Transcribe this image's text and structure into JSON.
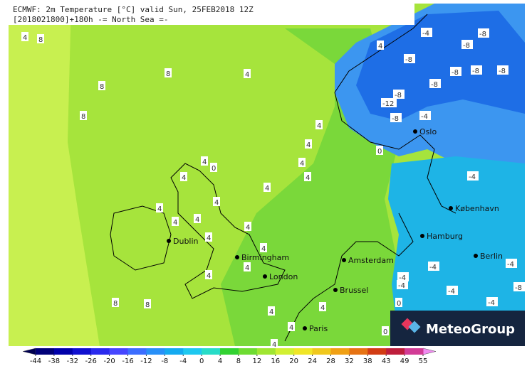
{
  "header": {
    "line1": "ECMWF: 2m Temperature [°C] valid Sun, 25FEB2018 12Z",
    "line2": "[2018021800]+180h  -= North Sea =-"
  },
  "cities": [
    "Oslo",
    "København",
    "Hamburg",
    "Berlin",
    "Amsterdam",
    "Dublin",
    "Birmingham",
    "London",
    "Brussel",
    "Paris"
  ],
  "contour_labels": [
    "4",
    "8",
    "8",
    "8",
    "8",
    "8",
    "8",
    "4",
    "4",
    "4",
    "4",
    "4",
    "4",
    "0",
    "4",
    "4",
    "4",
    "4",
    "4",
    "4",
    "4",
    "4",
    "4",
    "4",
    "4",
    "4",
    "4",
    "4",
    "4",
    "4",
    "0",
    "0",
    "-4",
    "-4",
    "-4",
    "-8",
    "-8",
    "-8",
    "-8",
    "-8",
    "-8",
    "-8",
    "-12",
    "-8",
    "-8",
    "-4",
    "-4",
    "-4",
    "-4",
    "-4",
    "-8",
    "-4",
    "0"
  ],
  "colorbar": {
    "ticks": [
      -44,
      -38,
      -32,
      -26,
      -20,
      -16,
      -12,
      -8,
      -4,
      0,
      4,
      8,
      12,
      16,
      20,
      24,
      28,
      32,
      38,
      43,
      49,
      55
    ],
    "colors": [
      "#000078",
      "#0000aa",
      "#1010d0",
      "#2a2aee",
      "#4646ff",
      "#3c6eff",
      "#2890f8",
      "#14aaf0",
      "#1ec8f0",
      "#28dcc8",
      "#32d232",
      "#6edc32",
      "#a0e632",
      "#d2f032",
      "#f0e628",
      "#f0c81e",
      "#f0a014",
      "#e67314",
      "#d23c14",
      "#be1e3c",
      "#d23c96"
    ],
    "arrow_colors": [
      "#000050",
      "#f08cf0"
    ]
  },
  "logo": "MeteoGroup"
}
